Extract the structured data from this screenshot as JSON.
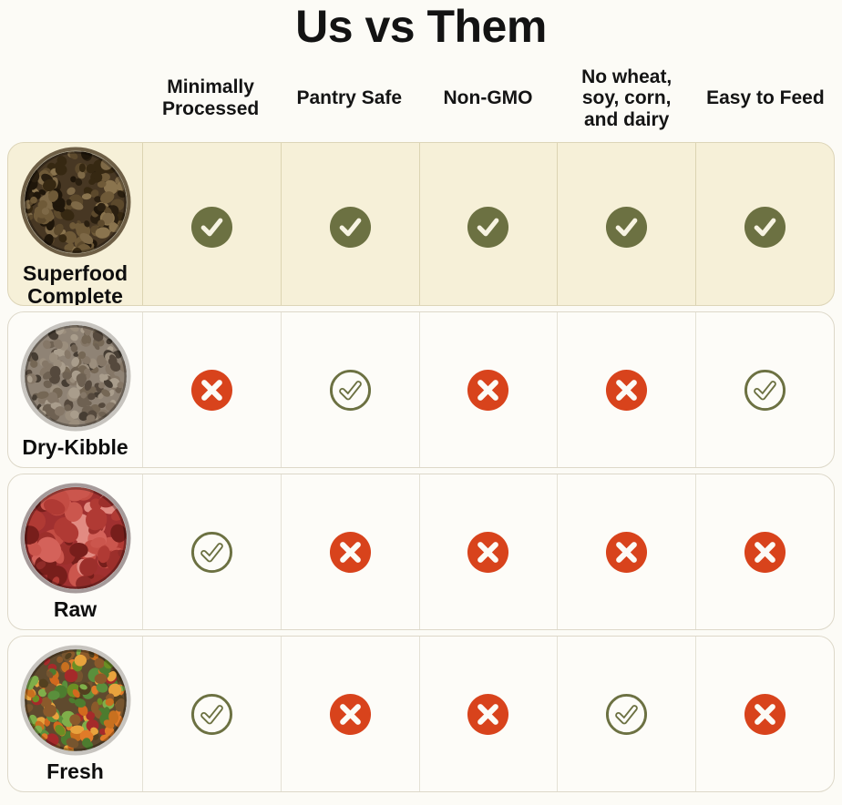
{
  "title": "Us vs Them",
  "columns": [
    {
      "id": "minimally-processed",
      "label": "Minimally Processed"
    },
    {
      "id": "pantry-safe",
      "label": "Pantry Safe"
    },
    {
      "id": "non-gmo",
      "label": "Non-GMO"
    },
    {
      "id": "no-wheat-soy-corn-dairy",
      "label": "No wheat, soy, corn, and dairy"
    },
    {
      "id": "easy-to-feed",
      "label": "Easy to Feed"
    }
  ],
  "rows": [
    {
      "name": "Superfood Complete",
      "highlighted": true,
      "image": "round bowl of dark brown superfood kibble clusters",
      "values": [
        "check-filled",
        "check-filled",
        "check-filled",
        "check-filled",
        "check-filled"
      ]
    },
    {
      "name": "Dry-Kibble",
      "highlighted": false,
      "image": "metal bowl of dry kibble pellets",
      "values": [
        "cross",
        "check-outline",
        "cross",
        "cross",
        "check-outline"
      ]
    },
    {
      "name": "Raw",
      "highlighted": false,
      "image": "bowl of raw red meat chunks",
      "values": [
        "check-outline",
        "cross",
        "cross",
        "cross",
        "cross"
      ]
    },
    {
      "name": "Fresh",
      "highlighted": false,
      "image": "metal bowl of fresh food with meat, carrots and peas",
      "values": [
        "check-outline",
        "cross",
        "cross",
        "check-outline",
        "cross"
      ]
    }
  ],
  "icons": {
    "check-filled": "white checkmark in solid olive-green circle",
    "check-outline": "hollow olive-green checkmark in olive-outlined circle",
    "cross": "white X in solid red-orange circle"
  },
  "colors": {
    "accent_olive": "#6C7142",
    "cross_red": "#D8431C",
    "highlight_row_bg": "#F6F0D8",
    "card_bg": "#FDFCF8",
    "page_bg": "#FCFBF6",
    "card_border": "#DDD8C9",
    "text": "#121212"
  },
  "chart_data": {
    "type": "table",
    "title": "Us vs Them",
    "columns": [
      "Minimally Processed",
      "Pantry Safe",
      "Non-GMO",
      "No wheat, soy, corn, and dairy",
      "Easy to Feed"
    ],
    "rows": [
      {
        "name": "Superfood Complete",
        "values": [
          true,
          true,
          true,
          true,
          true
        ]
      },
      {
        "name": "Dry-Kibble",
        "values": [
          false,
          true,
          false,
          false,
          true
        ]
      },
      {
        "name": "Raw",
        "values": [
          true,
          false,
          false,
          false,
          false
        ]
      },
      {
        "name": "Fresh",
        "values": [
          true,
          false,
          false,
          true,
          false
        ]
      }
    ],
    "legend": "filled olive check = product strength (top row), outline check = partial/yes for competitor, red X = no"
  }
}
